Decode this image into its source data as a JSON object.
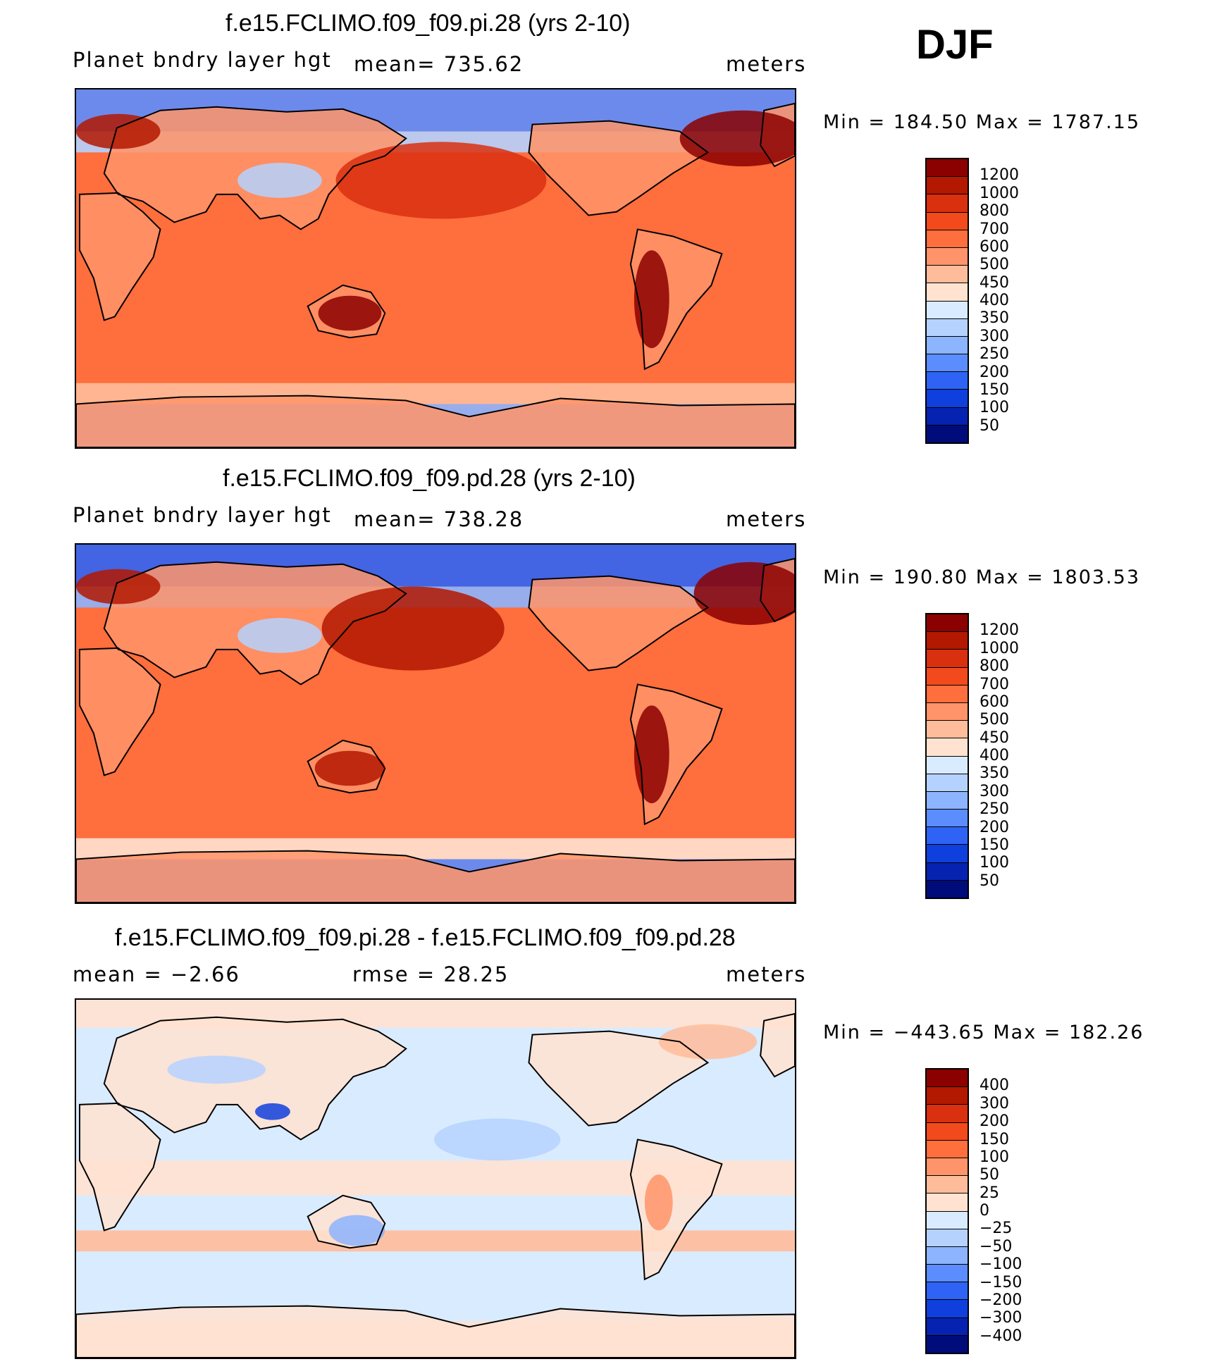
{
  "season": "DJF",
  "panels": [
    {
      "title": "f.e15.FCLIMO.f09_f09.pi.28 (yrs 2-10)",
      "variable": "Planet bndry layer hgt",
      "stat": "mean=  735.62",
      "units": "meters",
      "minmax": "Min  =  184.50  Max  =  1787.15",
      "field": "pbl_pi"
    },
    {
      "title": "f.e15.FCLIMO.f09_f09.pd.28 (yrs 2-10)",
      "variable": "Planet bndry layer hgt",
      "stat": "mean=  738.28",
      "units": "meters",
      "minmax": "Min  =  190.80  Max  =  1803.53",
      "field": "pbl_pd"
    },
    {
      "title": "f.e15.FCLIMO.f09_f09.pi.28 - f.e15.FCLIMO.f09_f09.pd.28",
      "variable": "mean  =    −2.66",
      "stat": "rmse  =    28.25",
      "units": "meters",
      "minmax": "Min  =  −443.65  Max  =  182.26",
      "field": "diff"
    }
  ],
  "colorbars": {
    "abs": {
      "labels": [
        "1200",
        "1000",
        "800",
        "700",
        "600",
        "500",
        "450",
        "400",
        "350",
        "300",
        "250",
        "200",
        "150",
        "100",
        "50"
      ],
      "colors": [
        "#8b0000",
        "#b31800",
        "#d93010",
        "#f24a1d",
        "#ff6e3d",
        "#ff946a",
        "#ffbc9a",
        "#ffe2d0",
        "#d9ebff",
        "#b5d2ff",
        "#8cb4ff",
        "#5c8dff",
        "#2f63f5",
        "#0f3fdc",
        "#0622b0",
        "#000c7a"
      ]
    },
    "diff": {
      "labels": [
        "400",
        "300",
        "200",
        "150",
        "100",
        "50",
        "25",
        "0",
        "−25",
        "−50",
        "−100",
        "−150",
        "−200",
        "−300",
        "−400"
      ],
      "colors": [
        "#8b0000",
        "#b31800",
        "#d93010",
        "#f24a1d",
        "#ff6e3d",
        "#ff946a",
        "#ffbc9a",
        "#ffe2d0",
        "#d9ebff",
        "#b5d2ff",
        "#8cb4ff",
        "#5c8dff",
        "#2f63f5",
        "#0f3fdc",
        "#0622b0",
        "#000c7a"
      ]
    }
  }
}
